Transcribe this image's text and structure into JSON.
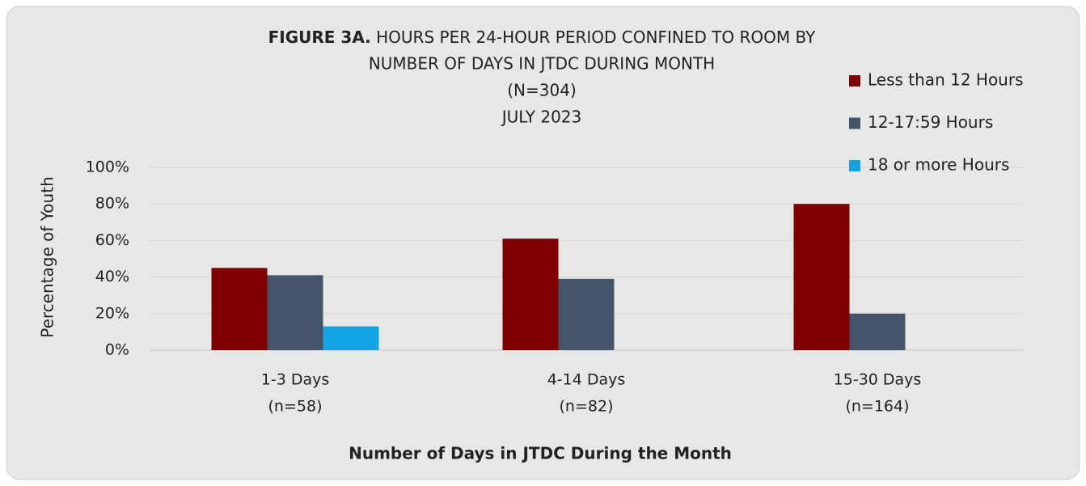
{
  "chart_data": {
    "type": "bar",
    "title": {
      "label": "FIGURE 3A.",
      "lines": [
        "HOURS PER 24-HOUR PERIOD CONFINED TO ROOM BY",
        "NUMBER OF DAYS IN JTDC DURING MONTH"
      ]
    },
    "subtitle": [
      "(N=304)",
      "JULY 2023"
    ],
    "x_label": "Number of Days in JTDC During the Month",
    "y_label": "Percentage of Youth",
    "categories": [
      [
        "1-3 Days",
        "(n=58)"
      ],
      [
        "4-14 Days",
        "(n=82)"
      ],
      [
        "15-30 Days",
        "(n=164)"
      ]
    ],
    "series": [
      {
        "name": "Less than 12 Hours",
        "color": "#7f0000",
        "values": [
          45,
          61,
          80
        ]
      },
      {
        "name": "12-17:59 Hours",
        "color": "#44546a",
        "values": [
          41,
          39,
          20
        ]
      },
      {
        "name": "18 or more Hours",
        "color": "#12a3e3",
        "values": [
          13,
          0,
          0
        ]
      }
    ],
    "ylim": [
      0,
      100
    ],
    "yticks": [
      {
        "value": 0,
        "label": "0%"
      },
      {
        "value": 20,
        "label": "20%"
      },
      {
        "value": 40,
        "label": "40%"
      },
      {
        "value": 60,
        "label": "60%"
      },
      {
        "value": 80,
        "label": "80%"
      },
      {
        "value": 100,
        "label": "100%"
      }
    ],
    "grid": true,
    "legend": "top-right"
  }
}
